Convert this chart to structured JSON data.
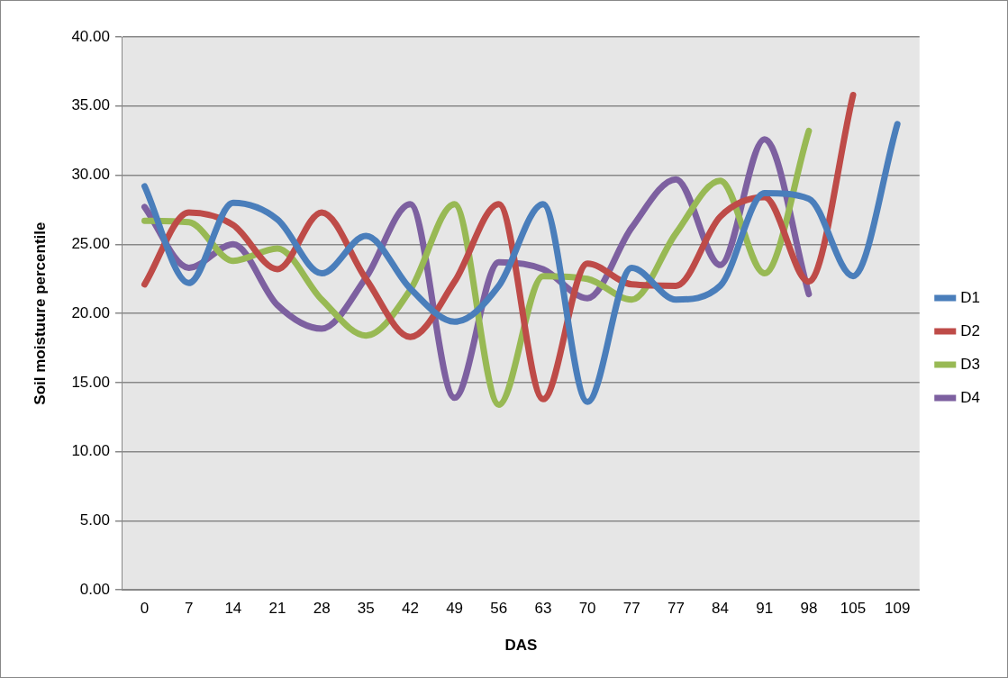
{
  "chart_data": {
    "type": "line",
    "xlabel": "DAS",
    "ylabel": "Soil moistuure percentile",
    "categories": [
      "0",
      "7",
      "14",
      "21",
      "28",
      "35",
      "42",
      "49",
      "56",
      "63",
      "70",
      "77",
      "77",
      "84",
      "91",
      "98",
      "105",
      "109"
    ],
    "series": [
      {
        "name": "D1",
        "color": "#4a7ebb",
        "values": [
          29.2,
          22.2,
          28.0,
          26.8,
          22.9,
          25.6,
          21.8,
          19.4,
          22.0,
          27.9,
          13.6,
          23.3,
          21.0,
          22.0,
          28.7,
          28.3,
          22.7,
          33.7
        ]
      },
      {
        "name": "D2",
        "color": "#be4b48",
        "values": [
          22.1,
          27.3,
          26.4,
          23.2,
          27.3,
          22.5,
          18.3,
          22.3,
          27.9,
          13.8,
          23.6,
          22.1,
          22.0,
          27.0,
          28.4,
          22.3,
          35.8,
          null
        ]
      },
      {
        "name": "D3",
        "color": "#98b954",
        "values": [
          26.7,
          26.6,
          23.8,
          24.7,
          21.0,
          18.4,
          21.7,
          27.9,
          13.4,
          22.7,
          22.5,
          21.0,
          25.8,
          29.6,
          22.9,
          33.2,
          null,
          null
        ]
      },
      {
        "name": "D4",
        "color": "#7d60a0",
        "values": [
          27.7,
          23.3,
          25.0,
          20.6,
          18.9,
          22.6,
          27.9,
          13.9,
          23.7,
          23.2,
          21.1,
          26.2,
          29.7,
          23.5,
          32.6,
          21.4,
          null,
          null
        ]
      }
    ],
    "ylim": [
      0,
      40
    ],
    "yticks": [
      {
        "value": 0,
        "label": "0.00"
      },
      {
        "value": 5,
        "label": "5.00"
      },
      {
        "value": 10,
        "label": "10.00"
      },
      {
        "value": 15,
        "label": "15.00"
      },
      {
        "value": 20,
        "label": "20.00"
      },
      {
        "value": 25,
        "label": "25.00"
      },
      {
        "value": 30,
        "label": "30.00"
      },
      {
        "value": 35,
        "label": "35.00"
      },
      {
        "value": 40,
        "label": "40.00"
      }
    ],
    "grid": "y",
    "legend": "right",
    "marker": "none",
    "line_style": "solid"
  }
}
